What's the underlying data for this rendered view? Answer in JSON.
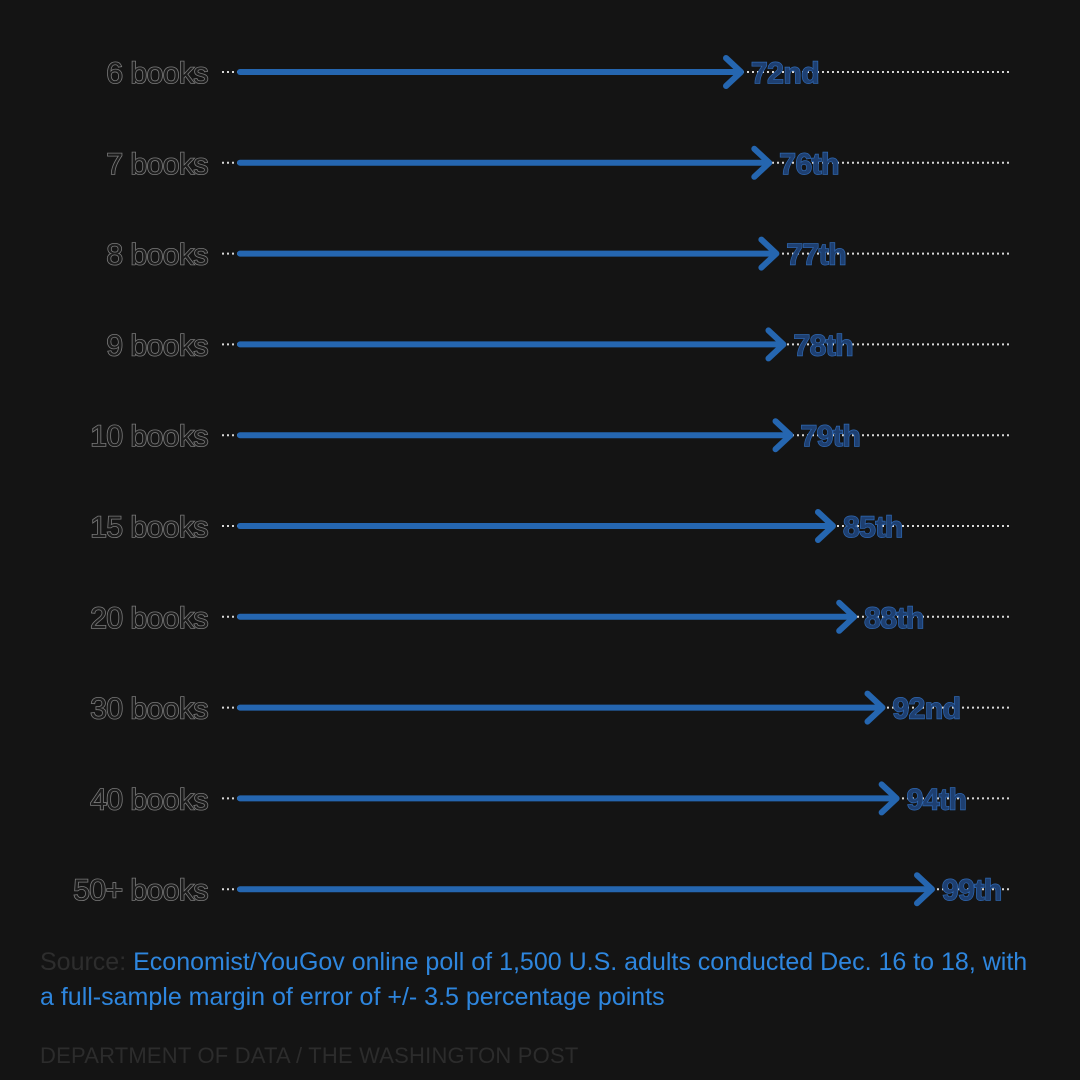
{
  "chart_data": {
    "type": "bar",
    "categories": [
      "6 books",
      "7 books",
      "8 books",
      "9 books",
      "10 books",
      "15 books",
      "20 books",
      "30 books",
      "40 books",
      "50+ books"
    ],
    "values": [
      72,
      76,
      77,
      78,
      79,
      85,
      88,
      92,
      94,
      99
    ],
    "value_labels": [
      "72nd",
      "76th",
      "77th",
      "78th",
      "79th",
      "85th",
      "88th",
      "92nd",
      "94th",
      "99th"
    ],
    "xlim": [
      0,
      100
    ],
    "grid": false,
    "legend": "none"
  },
  "colors": {
    "background": "#141414",
    "arrow": "#2566b0",
    "dotted_line": "#d8d8d8",
    "source_text": "#2e86de"
  },
  "source": {
    "prefix": "Source: ",
    "text": "Economist/YouGov online poll of 1,500 U.S. adults conducted Dec. 16 to 18, with a full-sample margin of error of +/- 3.5 percentage points"
  },
  "credit": "DEPARTMENT OF DATA / THE WASHINGTON POST"
}
